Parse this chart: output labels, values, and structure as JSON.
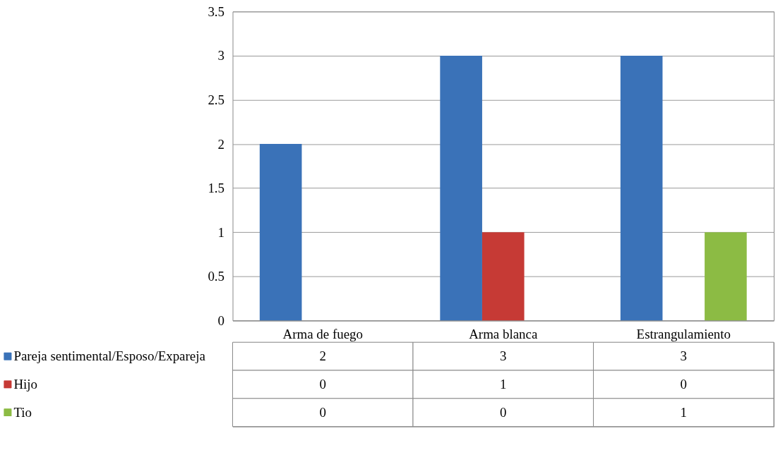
{
  "chart_data": {
    "type": "bar",
    "categories": [
      "Arma de fuego",
      "Arma blanca",
      "Estrangulamiento"
    ],
    "series": [
      {
        "name": "Pareja sentimental/Esposo/Expareja",
        "color": "#3a72b8",
        "values": [
          2,
          3,
          3
        ]
      },
      {
        "name": "Hijo",
        "color": "#c63a35",
        "values": [
          0,
          1,
          0
        ]
      },
      {
        "name": "Tio",
        "color": "#8cbb44",
        "values": [
          0,
          0,
          1
        ]
      }
    ],
    "ylim": [
      0,
      3.5
    ],
    "yticks": [
      0,
      0.5,
      1,
      1.5,
      2,
      2.5,
      3,
      3.5
    ],
    "grid": "y",
    "legend": "bottom left",
    "data_labels": true
  }
}
